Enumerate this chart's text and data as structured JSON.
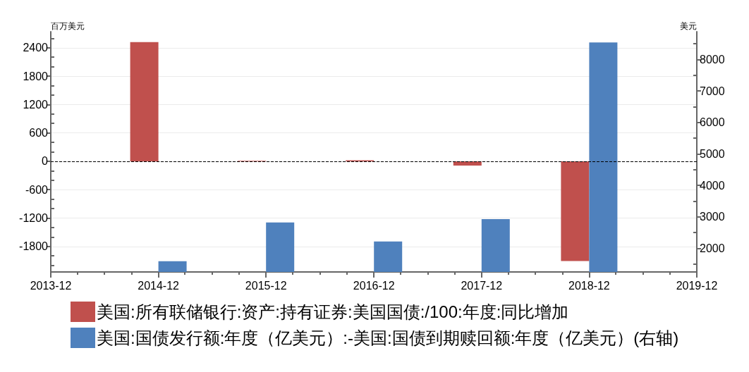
{
  "chart_data": {
    "type": "bar",
    "ylabel": "百万美元",
    "y2label": "美元",
    "x": [
      "2014-12",
      "2015-12",
      "2016-12",
      "2017-12",
      "2018-12"
    ],
    "series": [
      {
        "name": "美国:所有联储银行:资产:持有证券:美国国债:/100:年度:同比增加",
        "color": "#c0504d",
        "values": [
          2520,
          10,
          20,
          -90,
          -2110
        ]
      },
      {
        "name": "美国:国债发行额:年度（亿美元）:-美国:国债到期赎回额:年度（亿美元）(右轴)",
        "color": "#4f81bd",
        "axis": "y2",
        "values": [
          1590,
          2820,
          2220,
          2930,
          8540
        ]
      }
    ],
    "xlim": [
      "2013-12",
      "2019-12"
    ],
    "xticks": [
      "2013-12",
      {
        "value": "2014-03",
        "label": null
      },
      {
        "value": "2014-06",
        "label": null
      },
      {
        "value": "2014-09",
        "label": null
      },
      "2014-12",
      {
        "value": "2015-03",
        "label": null
      },
      {
        "value": "2015-06",
        "label": null
      },
      {
        "value": "2015-09",
        "label": null
      },
      "2015-12",
      {
        "value": "2016-03",
        "label": null
      },
      {
        "value": "2016-06",
        "label": null
      },
      {
        "value": "2016-09",
        "label": null
      },
      "2016-12",
      {
        "value": "2017-03",
        "label": null
      },
      {
        "value": "2017-06",
        "label": null
      },
      {
        "value": "2017-09",
        "label": null
      },
      "2017-12",
      {
        "value": "2018-03",
        "label": null
      },
      {
        "value": "2018-06",
        "label": null
      },
      {
        "value": "2018-09",
        "label": null
      },
      "2018-12",
      {
        "value": "2019-03",
        "label": null
      },
      {
        "value": "2019-06",
        "label": null
      },
      {
        "value": "2019-09",
        "label": null
      },
      "2019-12"
    ],
    "ylim": [
      -2340,
      2740
    ],
    "yticks": [
      {
        "value": -2200,
        "label": null
      },
      {
        "value": -2000,
        "label": null
      },
      -1800,
      {
        "value": -1600,
        "label": null
      },
      {
        "value": -1400,
        "label": null
      },
      -1200,
      {
        "value": -1000,
        "label": null
      },
      {
        "value": -800,
        "label": null
      },
      -600,
      {
        "value": -400,
        "label": null
      },
      {
        "value": -200,
        "label": null
      },
      0,
      {
        "value": 200,
        "label": null
      },
      {
        "value": 400,
        "label": null
      },
      600,
      {
        "value": 800,
        "label": null
      },
      {
        "value": 1000,
        "label": null
      },
      1200,
      {
        "value": 1400,
        "label": null
      },
      {
        "value": 1600,
        "label": null
      },
      1800,
      {
        "value": 2000,
        "label": null
      },
      {
        "value": 2200,
        "label": null
      },
      2400,
      {
        "value": 2600,
        "label": null
      }
    ],
    "y2lim": [
      1250,
      8880
    ],
    "y2ticks": [
      {
        "value": 1500,
        "label": null
      },
      2000,
      {
        "value": 2500,
        "label": null
      },
      3000,
      {
        "value": 3500,
        "label": null
      },
      4000,
      {
        "value": 4500,
        "label": null
      },
      5000,
      {
        "value": 5500,
        "label": null
      },
      6000,
      {
        "value": 6500,
        "label": null
      },
      7000,
      {
        "value": 7500,
        "label": null
      },
      8000,
      {
        "value": 8500,
        "label": null
      }
    ],
    "ref_lines": [
      {
        "axis": "y",
        "value": 0,
        "color": "#000000",
        "line_style": "dashed"
      }
    ],
    "grid": "y",
    "legend": "bottom"
  }
}
